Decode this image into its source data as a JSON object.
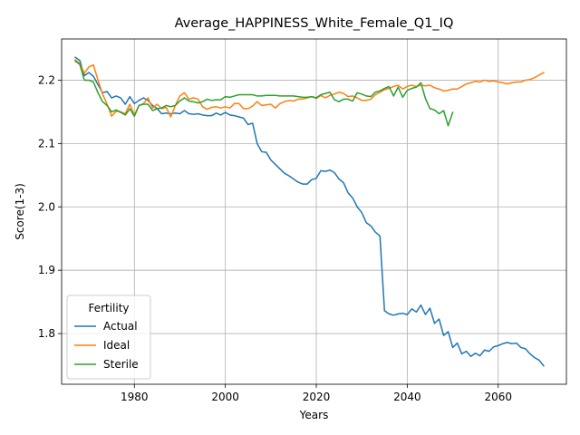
{
  "chart_data": {
    "type": "line",
    "title": "Average_HAPPINESS_White_Female_Q1_IQ",
    "xlabel": "Years",
    "ylabel": "Score(1-3)",
    "xlim": [
      1964,
      2075
    ],
    "ylim": [
      1.72,
      2.265
    ],
    "xticks": [
      1980,
      2000,
      2020,
      2040,
      2060
    ],
    "yticks": [
      1.8,
      1.9,
      2.0,
      2.1,
      2.2
    ],
    "grid": true,
    "legend": {
      "title": "Fertility",
      "placement": "lower-left"
    },
    "series": [
      {
        "name": "Actual",
        "color": "#1f77b4",
        "x": [
          1967,
          1968,
          1969,
          1970,
          1971,
          1972,
          1973,
          1974,
          1975,
          1976,
          1977,
          1978,
          1979,
          1980,
          1981,
          1982,
          1983,
          1984,
          1985,
          1986,
          1987,
          1988,
          1989,
          1990,
          1991,
          1992,
          1993,
          1994,
          1995,
          1996,
          1997,
          1998,
          1999,
          2000,
          2001,
          2002,
          2003,
          2004,
          2005,
          2006,
          2007,
          2008,
          2009,
          2010,
          2011,
          2012,
          2013,
          2014,
          2015,
          2016,
          2017,
          2018,
          2019,
          2020,
          2021,
          2022,
          2023,
          2024,
          2025,
          2026,
          2027,
          2028,
          2029,
          2030,
          2031,
          2032,
          2033,
          2034,
          2035,
          2036,
          2037,
          2038,
          2039,
          2040,
          2041,
          2042,
          2043,
          2044,
          2045,
          2046,
          2047,
          2048,
          2049,
          2050,
          2051,
          2052,
          2053,
          2054,
          2055,
          2056,
          2057,
          2058,
          2059,
          2060,
          2061,
          2062,
          2063,
          2064,
          2065,
          2066,
          2067,
          2068,
          2069,
          2070
        ],
        "values": [
          2.236,
          2.231,
          2.207,
          2.212,
          2.206,
          2.193,
          2.18,
          2.182,
          2.172,
          2.175,
          2.172,
          2.162,
          2.174,
          2.163,
          2.168,
          2.172,
          2.168,
          2.16,
          2.155,
          2.147,
          2.148,
          2.147,
          2.148,
          2.147,
          2.152,
          2.147,
          2.146,
          2.147,
          2.145,
          2.144,
          2.144,
          2.148,
          2.145,
          2.149,
          2.145,
          2.144,
          2.142,
          2.14,
          2.13,
          2.132,
          2.1,
          2.087,
          2.086,
          2.074,
          2.067,
          2.06,
          2.053,
          2.049,
          2.044,
          2.039,
          2.036,
          2.036,
          2.043,
          2.045,
          2.057,
          2.056,
          2.058,
          2.054,
          2.044,
          2.038,
          2.022,
          2.014,
          2.0,
          1.991,
          1.975,
          1.97,
          1.96,
          1.954,
          1.836,
          1.831,
          1.829,
          1.831,
          1.832,
          1.83,
          1.839,
          1.834,
          1.845,
          1.83,
          1.84,
          1.816,
          1.823,
          1.797,
          1.803,
          1.778,
          1.785,
          1.768,
          1.772,
          1.764,
          1.769,
          1.765,
          1.774,
          1.772,
          1.779,
          1.781,
          1.784,
          1.786,
          1.784,
          1.785,
          1.778,
          1.776,
          1.768,
          1.762,
          1.758,
          1.749
        ]
      },
      {
        "name": "Ideal",
        "color": "#ff7f0e",
        "x": [
          1967,
          1968,
          1969,
          1970,
          1971,
          1972,
          1973,
          1974,
          1975,
          1976,
          1977,
          1978,
          1979,
          1980,
          1981,
          1982,
          1983,
          1984,
          1985,
          1986,
          1987,
          1988,
          1989,
          1990,
          1991,
          1992,
          1993,
          1994,
          1995,
          1996,
          1997,
          1998,
          1999,
          2000,
          2001,
          2002,
          2003,
          2004,
          2005,
          2006,
          2007,
          2008,
          2009,
          2010,
          2011,
          2012,
          2013,
          2014,
          2015,
          2016,
          2017,
          2018,
          2019,
          2020,
          2021,
          2022,
          2023,
          2024,
          2025,
          2026,
          2027,
          2028,
          2029,
          2030,
          2031,
          2032,
          2033,
          2034,
          2035,
          2036,
          2037,
          2038,
          2039,
          2040,
          2041,
          2042,
          2043,
          2044,
          2045,
          2046,
          2047,
          2048,
          2049,
          2050,
          2051,
          2052,
          2053,
          2054,
          2055,
          2056,
          2057,
          2058,
          2059,
          2060,
          2061,
          2062,
          2063,
          2064,
          2065,
          2066,
          2067,
          2068,
          2069,
          2070
        ],
        "values": [
          2.232,
          2.226,
          2.211,
          2.221,
          2.224,
          2.2,
          2.178,
          2.162,
          2.143,
          2.151,
          2.15,
          2.147,
          2.162,
          2.145,
          2.16,
          2.163,
          2.172,
          2.156,
          2.162,
          2.155,
          2.157,
          2.142,
          2.16,
          2.175,
          2.18,
          2.17,
          2.172,
          2.17,
          2.158,
          2.154,
          2.157,
          2.158,
          2.156,
          2.158,
          2.156,
          2.163,
          2.163,
          2.155,
          2.155,
          2.159,
          2.166,
          2.16,
          2.161,
          2.162,
          2.156,
          2.163,
          2.166,
          2.168,
          2.167,
          2.17,
          2.17,
          2.172,
          2.174,
          2.171,
          2.176,
          2.172,
          2.176,
          2.178,
          2.181,
          2.179,
          2.174,
          2.175,
          2.172,
          2.168,
          2.168,
          2.17,
          2.177,
          2.181,
          2.185,
          2.187,
          2.19,
          2.192,
          2.186,
          2.19,
          2.192,
          2.19,
          2.192,
          2.191,
          2.192,
          2.188,
          2.186,
          2.183,
          2.184,
          2.186,
          2.186,
          2.19,
          2.194,
          2.196,
          2.198,
          2.197,
          2.2,
          2.198,
          2.199,
          2.197,
          2.196,
          2.194,
          2.196,
          2.197,
          2.197,
          2.2,
          2.201,
          2.204,
          2.208,
          2.212
        ]
      },
      {
        "name": "Sterile",
        "color": "#2ca02c",
        "x": [
          1967,
          1968,
          1969,
          1970,
          1971,
          1972,
          1973,
          1974,
          1975,
          1976,
          1977,
          1978,
          1979,
          1980,
          1981,
          1982,
          1983,
          1984,
          1985,
          1986,
          1987,
          1988,
          1989,
          1990,
          1991,
          1992,
          1993,
          1994,
          1995,
          1996,
          1997,
          1998,
          1999,
          2000,
          2001,
          2002,
          2003,
          2004,
          2005,
          2006,
          2007,
          2008,
          2009,
          2010,
          2011,
          2012,
          2013,
          2014,
          2015,
          2016,
          2017,
          2018,
          2019,
          2020,
          2021,
          2022,
          2023,
          2024,
          2025,
          2026,
          2027,
          2028,
          2029,
          2030,
          2031,
          2032,
          2033,
          2034,
          2035,
          2036,
          2037,
          2038,
          2039,
          2040,
          2041,
          2042,
          2043,
          2044,
          2045,
          2046,
          2047,
          2048,
          2049,
          2050
        ],
        "values": [
          2.23,
          2.225,
          2.2,
          2.2,
          2.197,
          2.18,
          2.166,
          2.16,
          2.15,
          2.153,
          2.149,
          2.145,
          2.155,
          2.143,
          2.16,
          2.162,
          2.162,
          2.152,
          2.155,
          2.156,
          2.16,
          2.158,
          2.16,
          2.167,
          2.172,
          2.167,
          2.166,
          2.164,
          2.166,
          2.17,
          2.168,
          2.169,
          2.169,
          2.174,
          2.173,
          2.175,
          2.177,
          2.177,
          2.177,
          2.177,
          2.175,
          2.175,
          2.176,
          2.176,
          2.176,
          2.175,
          2.175,
          2.175,
          2.175,
          2.174,
          2.173,
          2.173,
          2.174,
          2.172,
          2.177,
          2.179,
          2.181,
          2.169,
          2.166,
          2.17,
          2.17,
          2.167,
          2.18,
          2.178,
          2.175,
          2.174,
          2.181,
          2.183,
          2.187,
          2.19,
          2.175,
          2.189,
          2.173,
          2.184,
          2.187,
          2.189,
          2.196,
          2.171,
          2.155,
          2.153,
          2.147,
          2.152,
          2.128,
          2.149
        ]
      }
    ]
  }
}
